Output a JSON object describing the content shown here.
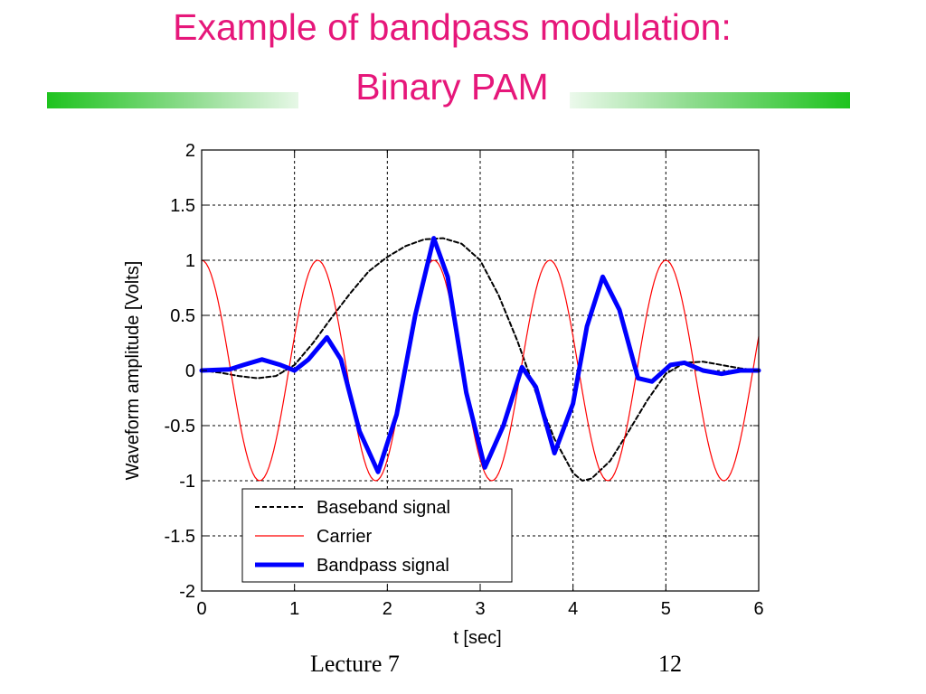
{
  "slide": {
    "title_line1": "Example of bandpass modulation:",
    "title_line2": "Binary PAM",
    "footer_left": "Lecture 7",
    "footer_right": "12",
    "title_color": "#e6177a",
    "rule_color": "#1ec31e"
  },
  "chart_data": {
    "type": "line",
    "xlabel": "t [sec]",
    "ylabel": "Waveform amplitude [Volts]",
    "xlim": [
      0,
      6
    ],
    "ylim": [
      -2,
      2
    ],
    "xticks": [
      0,
      1,
      2,
      3,
      4,
      5,
      6
    ],
    "yticks": [
      2,
      1.5,
      1,
      0.5,
      0,
      -0.5,
      -1,
      -1.5,
      -2
    ],
    "xtick_labels": [
      "0",
      "1",
      "2",
      "3",
      "4",
      "5",
      "6"
    ],
    "ytick_labels": [
      "2",
      "1.5",
      "1",
      "0.5",
      "0",
      "-0.5",
      "-1",
      "-1.5",
      "-2"
    ],
    "grid": true,
    "legend_position": "bottom-left",
    "series": [
      {
        "name": "Baseband signal",
        "color": "#000000",
        "style": "dashed",
        "x": [
          0,
          0.2,
          0.4,
          0.6,
          0.8,
          1.0,
          1.2,
          1.4,
          1.6,
          1.8,
          2.0,
          2.2,
          2.4,
          2.6,
          2.8,
          3.0,
          3.2,
          3.4,
          3.6,
          3.8,
          4.0,
          4.1,
          4.2,
          4.4,
          4.6,
          4.8,
          5.0,
          5.2,
          5.4,
          5.6,
          5.8,
          6.0
        ],
        "y": [
          0,
          -0.02,
          -0.05,
          -0.07,
          -0.05,
          0.05,
          0.25,
          0.48,
          0.7,
          0.9,
          1.03,
          1.13,
          1.19,
          1.2,
          1.15,
          1.0,
          0.68,
          0.27,
          -0.2,
          -0.62,
          -0.93,
          -1.0,
          -0.98,
          -0.82,
          -0.55,
          -0.27,
          -0.03,
          0.07,
          0.08,
          0.05,
          0.02,
          0
        ]
      },
      {
        "name": "Carrier",
        "color": "#ff0000",
        "style": "solid",
        "x": [
          0,
          0.2,
          0.4,
          0.6,
          0.8,
          1.0,
          1.2,
          1.4,
          1.6,
          1.8,
          2.0,
          2.2,
          2.4,
          2.6,
          2.8,
          3.0,
          3.2,
          3.4,
          3.6,
          3.8,
          4.0,
          4.2,
          4.4,
          4.6,
          4.8,
          5.0,
          5.2,
          5.4,
          5.6,
          5.8,
          6.0
        ],
        "y": [
          1,
          0.31,
          -0.81,
          -0.81,
          0.31,
          1,
          0.31,
          -0.81,
          -0.81,
          0.31,
          1,
          0.31,
          -0.81,
          -0.81,
          0.31,
          1,
          0.31,
          -0.81,
          -0.81,
          0.31,
          1,
          0.31,
          -0.81,
          -0.81,
          0.31,
          1,
          0.31,
          -0.81,
          -0.81,
          0.31,
          1
        ]
      },
      {
        "name": "Bandpass signal",
        "color": "#0000ff",
        "style": "thick",
        "x": [
          0,
          0.3,
          0.45,
          0.65,
          0.85,
          1.0,
          1.15,
          1.35,
          1.5,
          1.7,
          1.9,
          2.1,
          2.3,
          2.5,
          2.65,
          2.85,
          3.05,
          3.25,
          3.45,
          3.6,
          3.8,
          4.0,
          4.15,
          4.32,
          4.5,
          4.7,
          4.85,
          5.05,
          5.2,
          5.4,
          5.6,
          5.8,
          6.0
        ],
        "y": [
          0,
          0.01,
          0.05,
          0.1,
          0.05,
          0.0,
          0.1,
          0.3,
          0.1,
          -0.55,
          -0.92,
          -0.4,
          0.5,
          1.2,
          0.85,
          -0.2,
          -0.88,
          -0.5,
          0.03,
          -0.15,
          -0.75,
          -0.3,
          0.4,
          0.85,
          0.55,
          -0.07,
          -0.1,
          0.05,
          0.07,
          0.0,
          -0.03,
          0.0,
          0.0
        ]
      }
    ]
  }
}
